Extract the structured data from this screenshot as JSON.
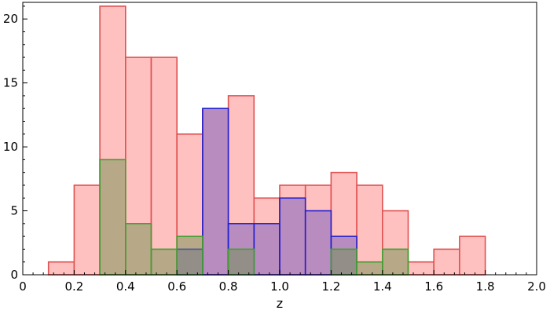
{
  "chart_data": {
    "type": "bar",
    "xlabel": "z",
    "ylabel": "",
    "xlim": [
      0,
      2.0
    ],
    "ylim": [
      0,
      21.3
    ],
    "grid": false,
    "bin_width": 0.1,
    "x_ticks": [
      0,
      0.2,
      0.4,
      0.6,
      0.8,
      1.0,
      1.2,
      1.4,
      1.6,
      1.8,
      2.0
    ],
    "x_tick_labels": [
      "0",
      "0.2",
      "0.4",
      "0.6",
      "0.8",
      "1.0",
      "1.2",
      "1.4",
      "1.6",
      "1.8",
      "2.0"
    ],
    "y_ticks": [
      0,
      5,
      10,
      15,
      20
    ],
    "y_tick_labels": [
      "0",
      "5",
      "10",
      "15",
      "20"
    ],
    "series": [
      {
        "fill": "#ffc0c0",
        "stroke": "#e05050",
        "bins": [
          {
            "x": 0.1,
            "value": 1
          },
          {
            "x": 0.2,
            "value": 7
          },
          {
            "x": 0.3,
            "value": 21
          },
          {
            "x": 0.4,
            "value": 17
          },
          {
            "x": 0.5,
            "value": 17
          },
          {
            "x": 0.6,
            "value": 11
          },
          {
            "x": 0.7,
            "value": 13
          },
          {
            "x": 0.8,
            "value": 14
          },
          {
            "x": 0.9,
            "value": 6
          },
          {
            "x": 1.0,
            "value": 7
          },
          {
            "x": 1.1,
            "value": 7
          },
          {
            "x": 1.2,
            "value": 8
          },
          {
            "x": 1.3,
            "value": 7
          },
          {
            "x": 1.4,
            "value": 5
          },
          {
            "x": 1.5,
            "value": 1
          },
          {
            "x": 1.6,
            "value": 2
          },
          {
            "x": 1.7,
            "value": 3
          }
        ]
      },
      {
        "fill": "#8060c0",
        "opacity": 0.55,
        "stroke": "#2020d0",
        "bins": [
          {
            "x": 0.6,
            "value": 2
          },
          {
            "x": 0.7,
            "value": 13
          },
          {
            "x": 0.8,
            "value": 4
          },
          {
            "x": 0.9,
            "value": 4
          },
          {
            "x": 1.0,
            "value": 6
          },
          {
            "x": 1.1,
            "value": 5
          },
          {
            "x": 1.2,
            "value": 3
          }
        ]
      },
      {
        "fill": "#709050",
        "opacity": 0.5,
        "stroke": "#40a030",
        "bins": [
          {
            "x": 0.3,
            "value": 9
          },
          {
            "x": 0.4,
            "value": 4
          },
          {
            "x": 0.5,
            "value": 2
          },
          {
            "x": 0.6,
            "value": 3
          },
          {
            "x": 0.8,
            "value": 2
          },
          {
            "x": 1.2,
            "value": 2
          },
          {
            "x": 1.3,
            "value": 1
          },
          {
            "x": 1.4,
            "value": 2
          }
        ]
      }
    ]
  }
}
